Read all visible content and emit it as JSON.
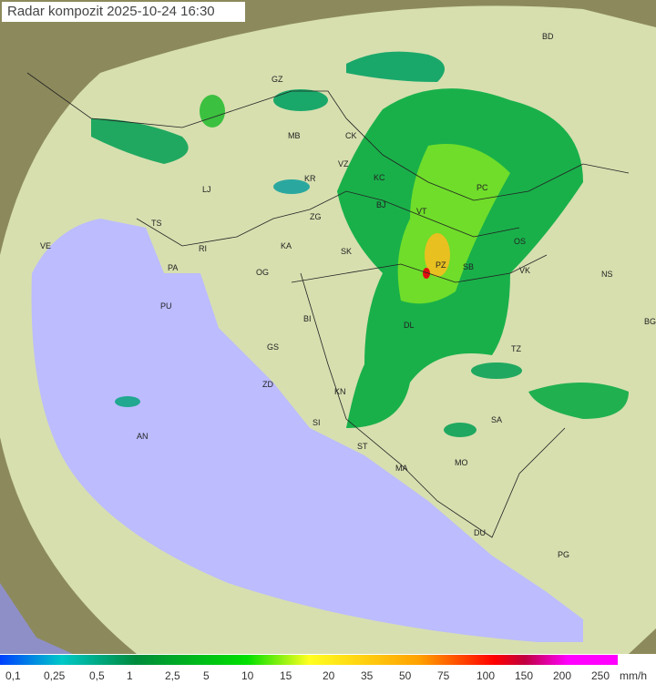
{
  "title": "Radar kompozit 2025-10-24  16:30",
  "legend": {
    "labels": [
      "0,1",
      "0,25",
      "0,5",
      "1",
      "2,5",
      "5",
      "10",
      "15",
      "20",
      "35",
      "50",
      "75",
      "100",
      "150",
      "200",
      "250"
    ],
    "unit": "mm/h",
    "colors": [
      "#0040ff",
      "#00c8c8",
      "#008a3c",
      "#00e000",
      "#ffff20",
      "#ffa000",
      "#ff0000",
      "#c00040",
      "#ff00ff"
    ]
  },
  "cities": [
    {
      "code": "BD",
      "p": [
        599,
        40
      ]
    },
    {
      "code": "GZ",
      "p": [
        302,
        87
      ]
    },
    {
      "code": "MB",
      "p": [
        320,
        149
      ]
    },
    {
      "code": "CK",
      "p": [
        383,
        149
      ]
    },
    {
      "code": "VZ",
      "p": [
        375,
        180
      ]
    },
    {
      "code": "KR",
      "p": [
        338,
        196
      ]
    },
    {
      "code": "KC",
      "p": [
        414,
        195
      ]
    },
    {
      "code": "LJ",
      "p": [
        226,
        208
      ]
    },
    {
      "code": "BJ",
      "p": [
        417,
        225
      ]
    },
    {
      "code": "ZG",
      "p": [
        344,
        238
      ]
    },
    {
      "code": "TS",
      "p": [
        170,
        245
      ]
    },
    {
      "code": "VT",
      "p": [
        461,
        232
      ]
    },
    {
      "code": "PC",
      "p": [
        527,
        206
      ]
    },
    {
      "code": "VE",
      "p": [
        48,
        270
      ]
    },
    {
      "code": "KA",
      "p": [
        312,
        270
      ]
    },
    {
      "code": "SK",
      "p": [
        378,
        276
      ]
    },
    {
      "code": "RI",
      "p": [
        222,
        273
      ]
    },
    {
      "code": "OS",
      "p": [
        568,
        265
      ]
    },
    {
      "code": "PA",
      "p": [
        188,
        294
      ]
    },
    {
      "code": "PZ",
      "p": [
        482,
        291
      ]
    },
    {
      "code": "SB",
      "p": [
        512,
        293
      ]
    },
    {
      "code": "VK",
      "p": [
        574,
        297
      ]
    },
    {
      "code": "NS",
      "p": [
        664,
        301
      ]
    },
    {
      "code": "OG",
      "p": [
        285,
        299
      ]
    },
    {
      "code": "PU",
      "p": [
        180,
        336
      ]
    },
    {
      "code": "BI",
      "p": [
        337,
        350
      ]
    },
    {
      "code": "DL",
      "p": [
        447,
        357
      ]
    },
    {
      "code": "BG",
      "p": [
        711,
        353
      ]
    },
    {
      "code": "GS",
      "p": [
        297,
        381
      ]
    },
    {
      "code": "TZ",
      "p": [
        565,
        383
      ]
    },
    {
      "code": "ZD",
      "p": [
        292,
        422
      ]
    },
    {
      "code": "KN",
      "p": [
        371,
        430
      ]
    },
    {
      "code": "SA",
      "p": [
        543,
        461
      ]
    },
    {
      "code": "SI",
      "p": [
        347,
        464
      ]
    },
    {
      "code": "AN",
      "p": [
        154,
        479
      ]
    },
    {
      "code": "ST",
      "p": [
        396,
        490
      ]
    },
    {
      "code": "MO",
      "p": [
        503,
        508
      ]
    },
    {
      "code": "MA",
      "p": [
        438,
        514
      ]
    },
    {
      "code": "DU",
      "p": [
        524,
        585
      ]
    },
    {
      "code": "PG",
      "p": [
        616,
        609
      ]
    }
  ]
}
